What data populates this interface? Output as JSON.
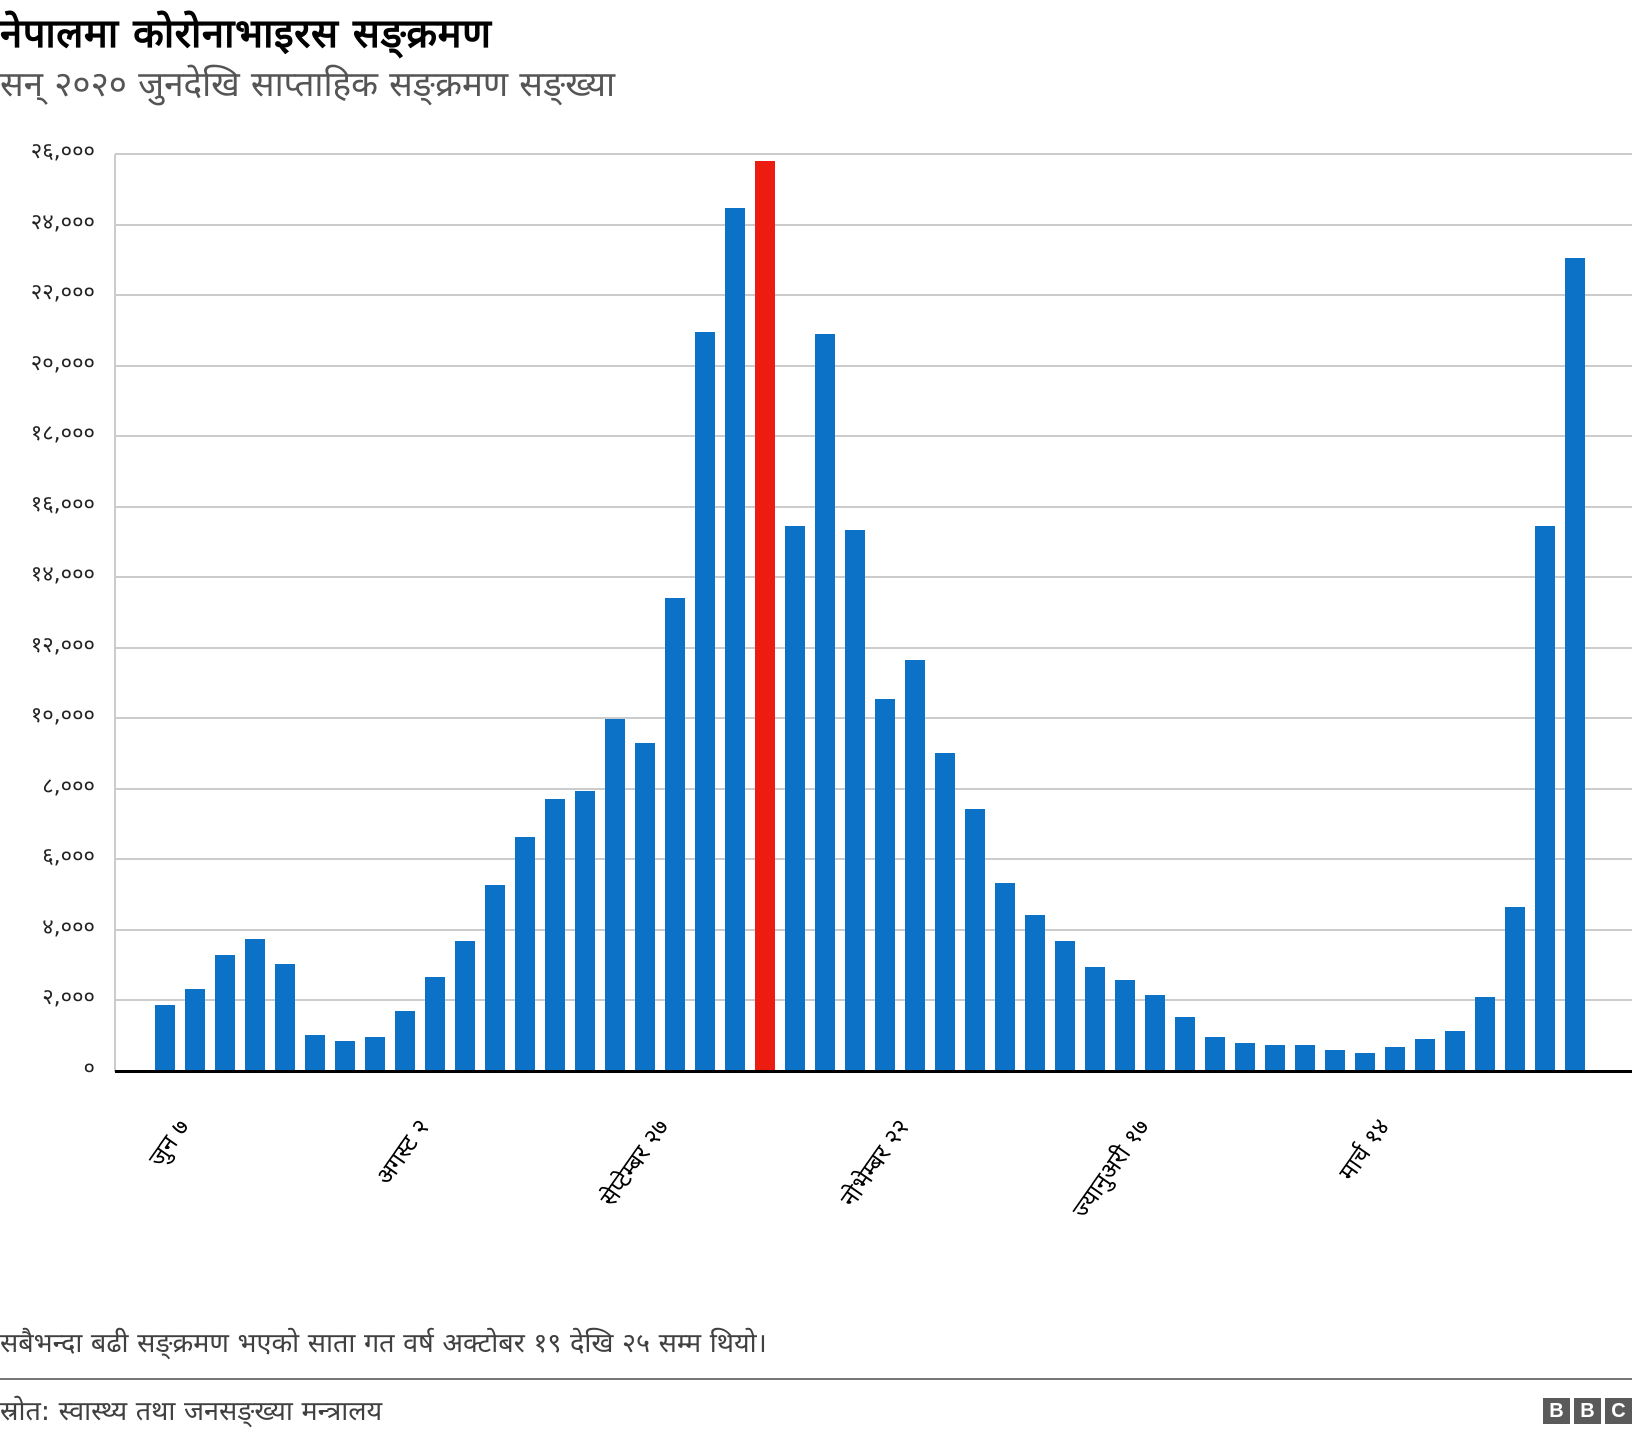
{
  "header": {
    "title": "नेपालमा कोरोनाभाइरस सङ्क्रमण",
    "subtitle": "सन् २०२० जुनदेखि साप्ताहिक सङ्क्रमण सङ्ख्या"
  },
  "footer": {
    "note": "सबैभन्दा बढी सङ्क्रमण भएको साता गत वर्ष अक्टोबर १९ देखि २५ सम्म थियो।",
    "source": "स्रोत: स्वास्थ्य तथा जनसङ्ख्या मन्त्रालय",
    "logo": [
      "B",
      "B",
      "C"
    ]
  },
  "colors": {
    "bar": "#0b72c7",
    "highlight": "#ed1c10",
    "grid": "#cccccc",
    "baseline": "#000000"
  },
  "chart_data": {
    "type": "bar",
    "title": "नेपालमा कोरोनाभाइरस सङ्क्रमण",
    "subtitle": "सन् २०२० जुनदेखि साप्ताहिक सङ्क्रमण सङ्ख्या",
    "xlabel": "",
    "ylabel": "",
    "ylim": [
      0,
      26000
    ],
    "grid": true,
    "legend": null,
    "y_ticks": [
      0,
      2000,
      4000,
      6000,
      8000,
      10000,
      12000,
      14000,
      16000,
      18000,
      20000,
      22000,
      24000,
      26000
    ],
    "y_tick_labels": [
      "०",
      "२,०००",
      "४,०००",
      "६,०००",
      "८,०००",
      "१०,०००",
      "१२,०००",
      "१४,०००",
      "१६,०००",
      "१८,०००",
      "२०,०००",
      "२२,०००",
      "२४,०००",
      "२६,०००"
    ],
    "x_tick_labels": [
      {
        "index": 0,
        "label": "जुन ७"
      },
      {
        "index": 8,
        "label": "अगस्ट २"
      },
      {
        "index": 16,
        "label": "सेप्टेम्बर २७"
      },
      {
        "index": 24,
        "label": "नोभेम्बर २२"
      },
      {
        "index": 32,
        "label": "ज्यानुअरी १७"
      },
      {
        "index": 40,
        "label": "मार्च १४"
      }
    ],
    "highlight_index": 20,
    "highlight_note": "सबैभन्दा बढी सङ्क्रमण भएको साता गत वर्ष अक्टोबर १९ देखि २५ सम्म थियो।",
    "series": [
      {
        "name": "साप्ताहिक सङ्क्रमण सङ्ख्या",
        "values": [
          1880,
          2330,
          3290,
          3740,
          3020,
          1020,
          860,
          970,
          1710,
          2670,
          3690,
          5270,
          6630,
          7700,
          7940,
          9970,
          9300,
          13420,
          20940,
          24460,
          25800,
          15450,
          20890,
          15350,
          10540,
          11660,
          9010,
          7430,
          5340,
          4430,
          3690,
          2950,
          2570,
          2160,
          1540,
          970,
          800,
          750,
          750,
          590,
          520,
          690,
          920,
          1140,
          2110,
          4650,
          15450,
          23040
        ]
      }
    ]
  }
}
